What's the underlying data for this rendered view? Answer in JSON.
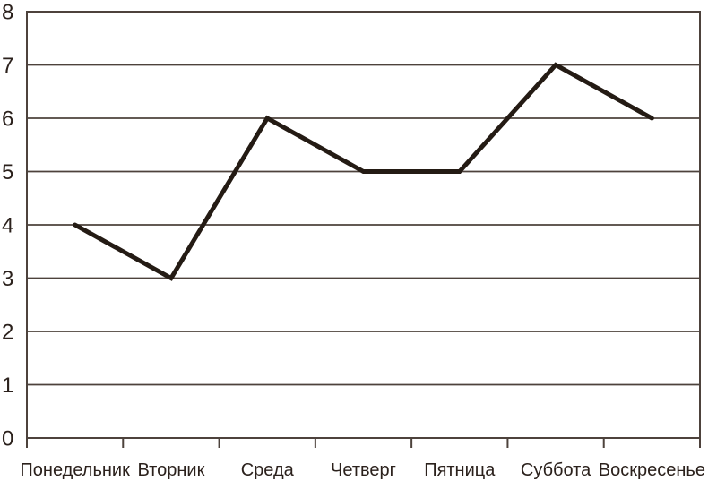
{
  "chart_data": {
    "type": "line",
    "title": "",
    "xlabel": "",
    "ylabel": "",
    "categories": [
      "Понедельник",
      "Вторник",
      "Среда",
      "Четверг",
      "Пятница",
      "Суббота",
      "Воскресенье"
    ],
    "values": [
      4,
      3,
      6,
      5,
      5,
      7,
      6
    ],
    "ylim": [
      0,
      8
    ],
    "yticks": [
      0,
      1,
      2,
      3,
      4,
      5,
      6,
      7,
      8
    ],
    "grid": "horizontal",
    "legend": "none",
    "markers": "none",
    "colors": {
      "line": "#241b14",
      "grid": "#4d423c",
      "text": "#2b211c",
      "background": "#ffffff"
    }
  }
}
